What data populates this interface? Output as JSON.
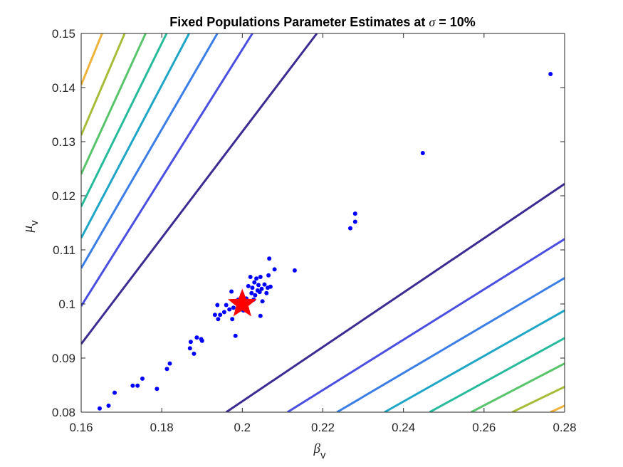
{
  "chart_data": {
    "type": "scatter",
    "title": {
      "prefix": "Fixed Populations Parameter Estimates at ",
      "symbol": "σ",
      "suffix": " = 10%"
    },
    "xlabel": {
      "symbol": "β",
      "subscript": "v"
    },
    "ylabel": {
      "symbol": "μ",
      "subscript": "v"
    },
    "xlim": [
      0.16,
      0.28
    ],
    "ylim": [
      0.08,
      0.15
    ],
    "xticks": [
      0.16,
      0.18,
      0.2,
      0.22,
      0.24,
      0.26,
      0.28
    ],
    "xtick_labels": [
      "0.16",
      "0.18",
      "0.2",
      "0.22",
      "0.24",
      "0.26",
      "0.28"
    ],
    "yticks": [
      0.08,
      0.09,
      0.1,
      0.11,
      0.12,
      0.13,
      0.14,
      0.15
    ],
    "ytick_labels": [
      "0.08",
      "0.09",
      "0.1",
      "0.11",
      "0.12",
      "0.13",
      "0.14",
      "0.15"
    ],
    "grid": false,
    "box": true,
    "true_value": {
      "x": 0.2,
      "y": 0.1,
      "marker": "star",
      "color": "#ff0000"
    },
    "estimates_color": "#0000ff",
    "estimates": [
      [
        0.1646,
        0.0807
      ],
      [
        0.1668,
        0.0812
      ],
      [
        0.1683,
        0.0836
      ],
      [
        0.1728,
        0.0849
      ],
      [
        0.174,
        0.0849
      ],
      [
        0.1752,
        0.0862
      ],
      [
        0.1788,
        0.0843
      ],
      [
        0.1813,
        0.088
      ],
      [
        0.182,
        0.089
      ],
      [
        0.187,
        0.0918
      ],
      [
        0.1872,
        0.093
      ],
      [
        0.188,
        0.0908
      ],
      [
        0.1887,
        0.0938
      ],
      [
        0.1898,
        0.0935
      ],
      [
        0.19,
        0.0932
      ],
      [
        0.1932,
        0.098
      ],
      [
        0.1938,
        0.0998
      ],
      [
        0.194,
        0.0972
      ],
      [
        0.1945,
        0.098
      ],
      [
        0.1955,
        0.0985
      ],
      [
        0.196,
        0.0998
      ],
      [
        0.1968,
        0.099
      ],
      [
        0.1973,
        0.1023
      ],
      [
        0.1975,
        0.0972
      ],
      [
        0.1978,
        0.0993
      ],
      [
        0.1983,
        0.0941
      ],
      [
        0.199,
        0.1008
      ],
      [
        0.1995,
        0.099
      ],
      [
        0.2,
        0.1018
      ],
      [
        0.2003,
        0.0988
      ],
      [
        0.201,
        0.101
      ],
      [
        0.2015,
        0.1033
      ],
      [
        0.2018,
        0.1003
      ],
      [
        0.202,
        0.105
      ],
      [
        0.2023,
        0.102
      ],
      [
        0.2025,
        0.103
      ],
      [
        0.2028,
        0.1008
      ],
      [
        0.203,
        0.104
      ],
      [
        0.2032,
        0.1016
      ],
      [
        0.2035,
        0.1047
      ],
      [
        0.2038,
        0.1025
      ],
      [
        0.204,
        0.1035
      ],
      [
        0.2043,
        0.1022
      ],
      [
        0.2045,
        0.105
      ],
      [
        0.2048,
        0.1028
      ],
      [
        0.205,
        0.1005
      ],
      [
        0.2045,
        0.0978
      ],
      [
        0.2055,
        0.1036
      ],
      [
        0.206,
        0.102
      ],
      [
        0.2063,
        0.103
      ],
      [
        0.2065,
        0.1053
      ],
      [
        0.2067,
        0.1084
      ],
      [
        0.207,
        0.1032
      ],
      [
        0.208,
        0.1064
      ],
      [
        0.213,
        0.1062
      ],
      [
        0.2268,
        0.114
      ],
      [
        0.228,
        0.1152
      ],
      [
        0.228,
        0.1167
      ],
      [
        0.2448,
        0.1279
      ],
      [
        0.2765,
        0.1425
      ]
    ],
    "contour_colors": [
      "#3d2b94",
      "#4a4fe0",
      "#3a7ee6",
      "#1fa6c6",
      "#27bb9c",
      "#58c46b",
      "#a6bd3a",
      "#f0b33a",
      "#f5e22e",
      "#f9fb0e"
    ],
    "contours_upper": [
      [
        [
          0.16,
          0.0926
        ],
        [
          0.2185,
          0.15
        ]
      ],
      [
        [
          0.16,
          0.0996
        ],
        [
          0.2025,
          0.15
        ]
      ],
      [
        [
          0.16,
          0.1066
        ],
        [
          0.1938,
          0.15
        ]
      ],
      [
        [
          0.16,
          0.1122
        ],
        [
          0.1868,
          0.15
        ]
      ],
      [
        [
          0.16,
          0.118
        ],
        [
          0.1812,
          0.15
        ]
      ],
      [
        [
          0.16,
          0.124
        ],
        [
          0.176,
          0.15
        ]
      ],
      [
        [
          0.16,
          0.1312
        ],
        [
          0.1708,
          0.15
        ]
      ],
      [
        [
          0.16,
          0.1405
        ],
        [
          0.1652,
          0.15
        ]
      ]
    ],
    "contours_lower": [
      [
        [
          0.196,
          0.08
        ],
        [
          0.28,
          0.1222
        ]
      ],
      [
        [
          0.2112,
          0.08
        ],
        [
          0.28,
          0.112
        ]
      ],
      [
        [
          0.2235,
          0.08
        ],
        [
          0.28,
          0.1048
        ]
      ],
      [
        [
          0.2353,
          0.08
        ],
        [
          0.28,
          0.0988
        ]
      ],
      [
        [
          0.2465,
          0.08
        ],
        [
          0.28,
          0.0937
        ]
      ],
      [
        [
          0.2568,
          0.08
        ],
        [
          0.28,
          0.089
        ]
      ],
      [
        [
          0.267,
          0.08
        ],
        [
          0.28,
          0.0847
        ]
      ],
      [
        [
          0.2765,
          0.08
        ],
        [
          0.28,
          0.0812
        ]
      ]
    ]
  }
}
